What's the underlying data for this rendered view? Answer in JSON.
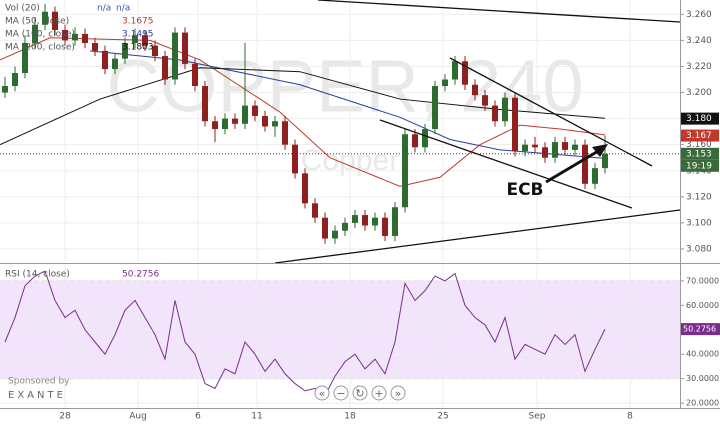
{
  "chart_data": {
    "type": "candlestick",
    "watermark": "COPPER, 240",
    "watermark_sub": "Copper",
    "annotation": "ECB",
    "x": [
      0.5,
      1.5,
      2.5,
      3.5,
      4.5,
      5.5,
      6.5,
      7.5,
      8.5,
      9.5,
      10.5,
      11.5,
      12.5,
      13.5,
      14.5,
      15.5,
      16.5,
      17.5,
      18.5,
      19.5,
      20.5,
      21.5,
      22.5,
      23.5,
      24.5,
      25.5,
      26.5,
      27.5,
      28.5,
      29.5,
      30.5,
      31.5,
      32.5,
      33.5,
      34.5,
      35.5,
      36.5,
      37.5,
      38.5,
      39.5,
      40.5,
      41.5,
      42.5,
      43.5,
      44.5,
      45.5,
      46.5,
      47.5,
      48.5,
      49.5,
      50.5,
      51.5,
      52.5,
      53.5,
      54.5,
      55.5,
      56.5,
      57.5,
      58.5,
      59.5,
      60.5
    ],
    "open": [
      3.2,
      3.205,
      3.215,
      3.238,
      3.252,
      3.262,
      3.248,
      3.24,
      3.245,
      3.238,
      3.232,
      3.218,
      3.226,
      3.238,
      3.244,
      3.236,
      3.228,
      3.21,
      3.246,
      3.222,
      3.205,
      3.178,
      3.172,
      3.18,
      3.176,
      3.19,
      3.182,
      3.174,
      3.178,
      3.16,
      3.138,
      3.115,
      3.104,
      3.088,
      3.094,
      3.1,
      3.106,
      3.098,
      3.104,
      3.09,
      3.112,
      3.168,
      3.158,
      3.172,
      3.205,
      3.21,
      3.224,
      3.206,
      3.198,
      3.19,
      3.178,
      3.196,
      3.155,
      3.16,
      3.158,
      3.15,
      3.162,
      3.156,
      3.16,
      3.13,
      3.142
    ],
    "high": [
      3.212,
      3.22,
      3.244,
      3.258,
      3.268,
      3.266,
      3.252,
      3.25,
      3.249,
      3.242,
      3.236,
      3.23,
      3.242,
      3.249,
      3.248,
      3.24,
      3.232,
      3.25,
      3.25,
      3.226,
      3.209,
      3.182,
      3.184,
      3.184,
      3.238,
      3.194,
      3.186,
      3.182,
      3.182,
      3.164,
      3.142,
      3.119,
      3.108,
      3.098,
      3.104,
      3.11,
      3.11,
      3.108,
      3.108,
      3.116,
      3.172,
      3.172,
      3.176,
      3.209,
      3.214,
      3.228,
      3.228,
      3.21,
      3.202,
      3.194,
      3.2,
      3.2,
      3.164,
      3.166,
      3.162,
      3.166,
      3.166,
      3.164,
      3.164,
      3.146,
      3.167
    ],
    "low": [
      3.196,
      3.201,
      3.211,
      3.234,
      3.248,
      3.244,
      3.236,
      3.236,
      3.234,
      3.228,
      3.214,
      3.214,
      3.222,
      3.234,
      3.232,
      3.224,
      3.206,
      3.206,
      3.218,
      3.201,
      3.174,
      3.162,
      3.168,
      3.172,
      3.172,
      3.178,
      3.17,
      3.166,
      3.156,
      3.134,
      3.111,
      3.1,
      3.084,
      3.084,
      3.09,
      3.096,
      3.094,
      3.094,
      3.086,
      3.086,
      3.108,
      3.154,
      3.154,
      3.168,
      3.201,
      3.206,
      3.202,
      3.194,
      3.186,
      3.174,
      3.174,
      3.151,
      3.151,
      3.154,
      3.146,
      3.146,
      3.152,
      3.152,
      3.126,
      3.126,
      3.138
    ],
    "close": [
      3.205,
      3.215,
      3.238,
      3.252,
      3.262,
      3.248,
      3.24,
      3.245,
      3.238,
      3.232,
      3.218,
      3.226,
      3.238,
      3.244,
      3.236,
      3.228,
      3.21,
      3.246,
      3.222,
      3.205,
      3.178,
      3.172,
      3.18,
      3.176,
      3.19,
      3.182,
      3.174,
      3.178,
      3.16,
      3.138,
      3.115,
      3.104,
      3.088,
      3.094,
      3.1,
      3.106,
      3.098,
      3.104,
      3.09,
      3.112,
      3.168,
      3.158,
      3.172,
      3.205,
      3.21,
      3.224,
      3.206,
      3.198,
      3.19,
      3.178,
      3.196,
      3.155,
      3.16,
      3.158,
      3.15,
      3.162,
      3.156,
      3.16,
      3.13,
      3.142,
      3.153
    ],
    "up_color": "#2e6b30",
    "down_color": "#8e2020",
    "xlim": [
      0,
      68
    ],
    "xticks": [
      {
        "value": 6.5,
        "label": "28"
      },
      {
        "value": 13.8,
        "label": "Aug"
      },
      {
        "value": 19.8,
        "label": "6"
      },
      {
        "value": 25.7,
        "label": "11"
      },
      {
        "value": 35,
        "label": "18"
      },
      {
        "value": 44.3,
        "label": "25"
      },
      {
        "value": 53.7,
        "label": "Sep"
      },
      {
        "value": 63,
        "label": "8"
      }
    ],
    "ylim": [
      3.07,
      3.271
    ],
    "yticks": [
      {
        "value": 3.26,
        "label": "3.260"
      },
      {
        "value": 3.24,
        "label": "3.240"
      },
      {
        "value": 3.22,
        "label": "3.220"
      },
      {
        "value": 3.2,
        "label": "3.200"
      },
      {
        "value": 3.18,
        "label": "3.180"
      },
      {
        "value": 3.16,
        "label": "3.160"
      },
      {
        "value": 3.14,
        "label": "3.140"
      },
      {
        "value": 3.12,
        "label": "3.120"
      },
      {
        "value": 3.1,
        "label": "3.100"
      },
      {
        "value": 3.08,
        "label": "3.080"
      }
    ],
    "grid": true,
    "volume_legend": {
      "name": "Vol (20)",
      "values": [
        "n/a",
        "n/a"
      ],
      "color": "#2a5db0"
    },
    "series": [
      {
        "name": "MA (50, close)",
        "color": "#c0392b",
        "x": [
          0,
          5,
          15,
          20,
          28,
          33,
          40,
          44,
          48,
          52,
          56,
          60.5
        ],
        "values": [
          3.225,
          3.242,
          3.24,
          3.225,
          3.185,
          3.15,
          3.128,
          3.135,
          3.16,
          3.175,
          3.172,
          3.1675
        ]
      },
      {
        "name": "MA (100, close)",
        "color": "#2a3f9e",
        "x": [
          9,
          18,
          30,
          40,
          45,
          50,
          60.5
        ],
        "values": [
          3.232,
          3.225,
          3.206,
          3.181,
          3.164,
          3.156,
          3.1495
        ]
      },
      {
        "name": "MA (200, close)",
        "color": "#111111",
        "x": [
          0,
          10,
          20,
          30,
          40,
          50,
          60.5
        ],
        "values": [
          3.16,
          3.195,
          3.219,
          3.216,
          3.195,
          3.187,
          3.1803
        ]
      }
    ],
    "price_markers": [
      {
        "value": 3.18,
        "label": "3.180",
        "color": "#111111"
      },
      {
        "value": 3.167,
        "label": "3.167",
        "color": "#c0392b"
      },
      {
        "value": 3.153,
        "label": "3.153",
        "color": "#3a6a3a"
      }
    ],
    "countdown": "19:19",
    "rsi": {
      "name": "RSI (14, close)",
      "color": "#7b2d8e",
      "values": [
        45,
        55,
        68,
        72,
        74,
        62,
        55,
        58,
        50,
        45,
        40,
        48,
        58,
        62,
        55,
        48,
        38,
        62,
        45,
        40,
        28,
        26,
        34,
        32,
        45,
        40,
        33,
        38,
        32,
        28,
        25,
        26,
        23,
        31,
        37,
        40,
        34,
        38,
        32,
        45,
        69,
        62,
        66,
        72,
        70,
        73,
        60,
        55,
        52,
        45,
        55,
        38,
        44,
        42,
        40,
        48,
        44,
        48,
        33,
        42,
        50.2756
      ],
      "ylim": [
        18,
        76.5
      ],
      "yticks": [
        {
          "value": 70,
          "label": "70.0000"
        },
        {
          "value": 60,
          "label": "60.0000"
        },
        {
          "value": 50,
          "label": "50.0000"
        },
        {
          "value": 40,
          "label": "40.0000"
        },
        {
          "value": 30,
          "label": "30.0000"
        },
        {
          "value": 20,
          "label": "20.0000"
        }
      ],
      "band": [
        30,
        70
      ],
      "band_color": "#f2e4fb"
    },
    "sponsor": {
      "text": "Sponsored by",
      "name": "EXANTE"
    }
  }
}
